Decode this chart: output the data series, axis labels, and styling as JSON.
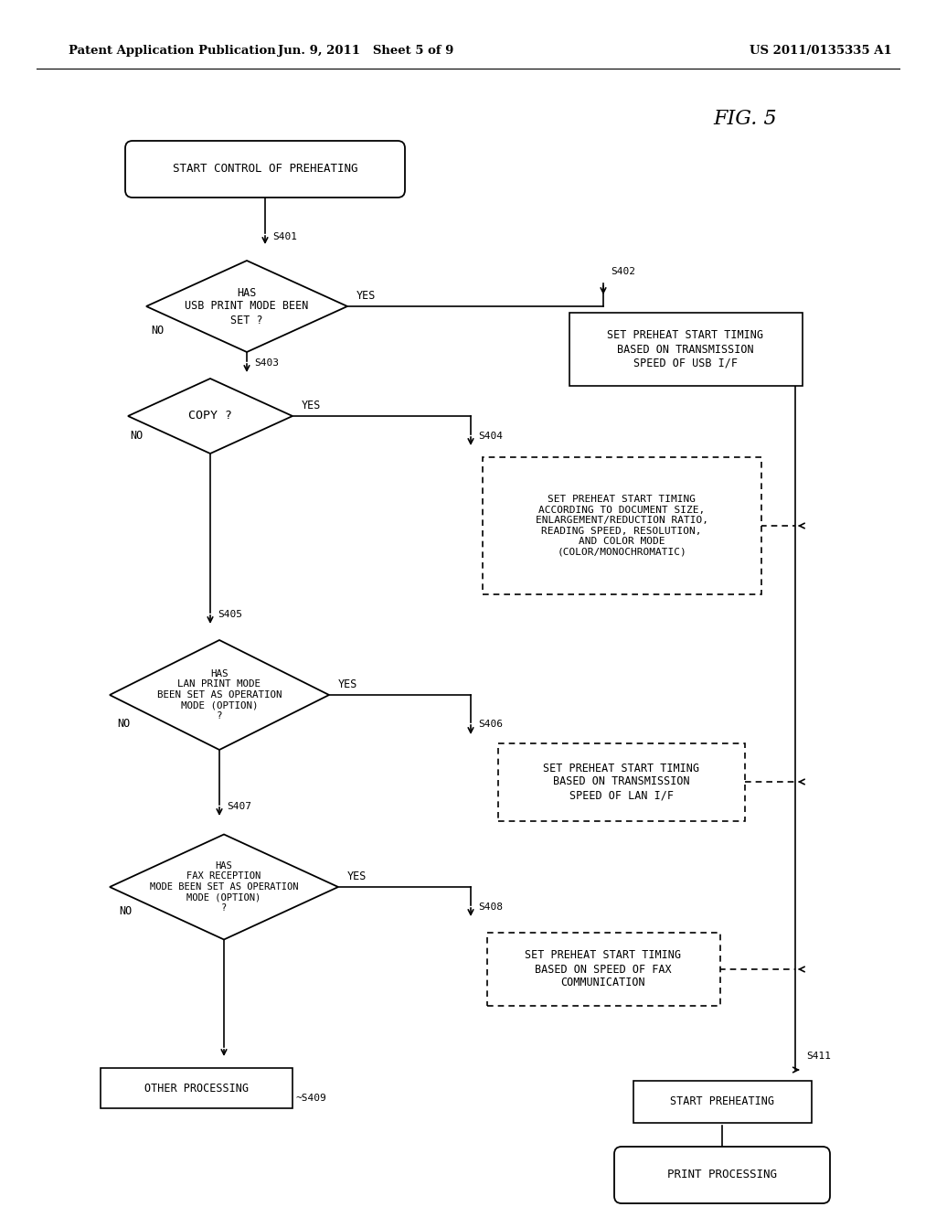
{
  "title": "FIG. 5",
  "header_left": "Patent Application Publication",
  "header_mid": "Jun. 9, 2011   Sheet 5 of 9",
  "header_right": "US 2011/0135335 A1",
  "bg_color": "#ffffff",
  "line_color": "#000000",
  "fig_label": "FIG. 5"
}
